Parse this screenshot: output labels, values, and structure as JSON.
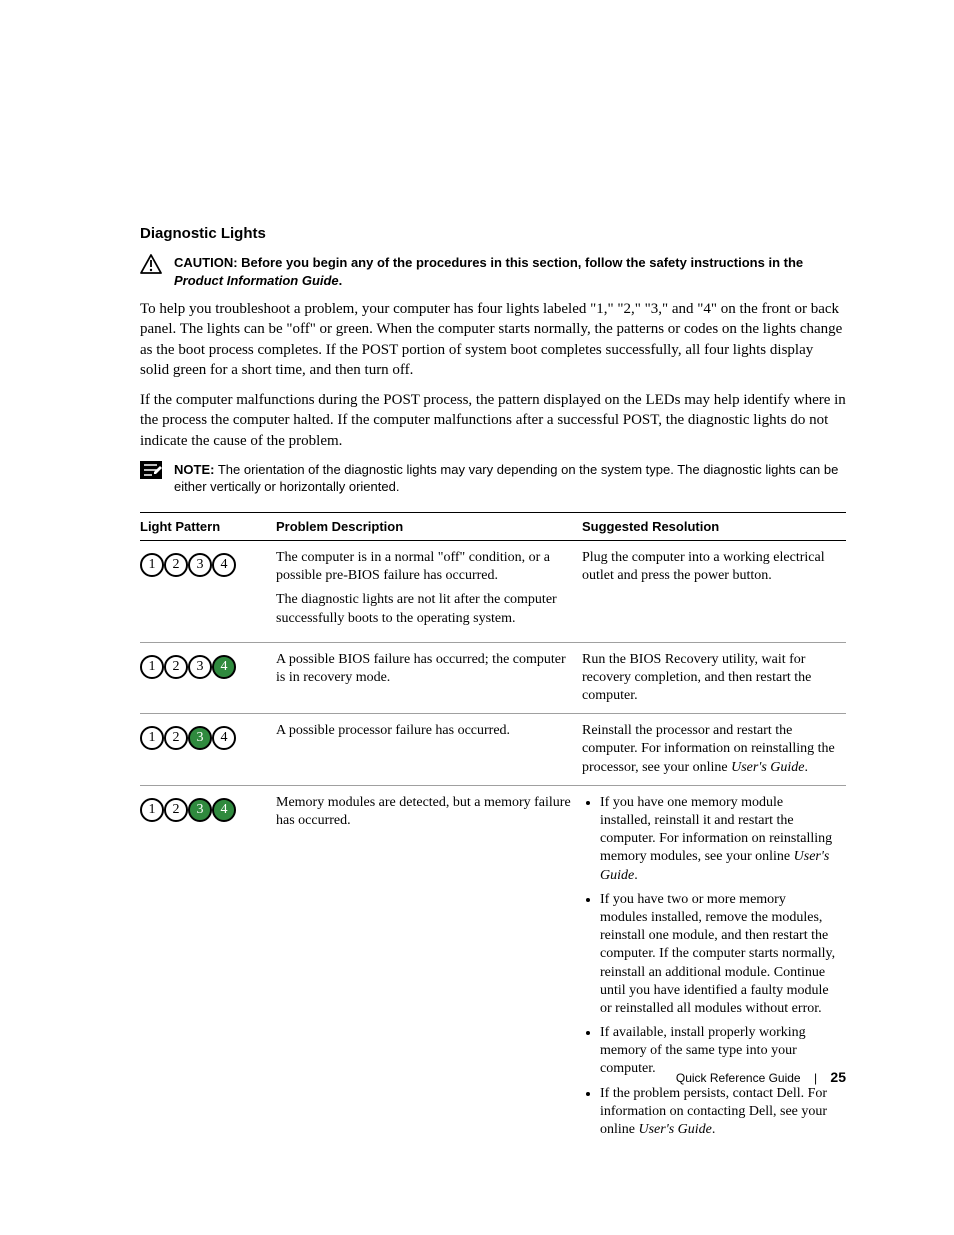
{
  "heading": "Diagnostic Lights",
  "caution": {
    "label": "CAUTION:",
    "text_before": " Before you begin any of the procedures in this section, follow the safety instructions in the ",
    "italic": "Product Information Guide",
    "text_after": ".",
    "icon_color": "#000000"
  },
  "paragraph1": "To help you troubleshoot a problem, your computer has four lights labeled \"1,\" \"2,\" \"3,\" and \"4\" on the front or back panel. The lights can be \"off\" or green. When the computer starts normally, the patterns or codes on the lights change as the boot process completes. If the POST portion of system boot completes successfully, all four lights display solid green for a short time, and then turn off.",
  "paragraph2": "If the computer malfunctions during the POST process, the pattern displayed on the LEDs may help identify where in the process the computer halted. If the computer malfunctions after a successful POST, the diagnostic lights do not indicate the cause of the problem.",
  "note": {
    "label": "NOTE:",
    "text": " The orientation of the diagnostic lights may vary depending on the system type. The diagnostic lights can be either vertically or horizontally oriented.",
    "icon_bg": "#000000",
    "icon_fg": "#ffffff"
  },
  "table": {
    "columns": [
      "Light Pattern",
      "Problem Description",
      "Suggested Resolution"
    ],
    "light_colors": {
      "off": "#ffffff",
      "green": "#2f8a3e"
    },
    "rows": [
      {
        "pattern": [
          "off",
          "off",
          "off",
          "off"
        ],
        "desc": [
          "The computer is in a normal \"off\" condition, or a possible pre-BIOS failure has occurred.",
          "The diagnostic lights are not lit after the computer successfully boots to the operating system."
        ],
        "resolution_plain": "Plug the computer into a working electrical outlet and press the power button."
      },
      {
        "pattern": [
          "off",
          "off",
          "off",
          "green"
        ],
        "desc": [
          "A possible BIOS failure has occurred; the computer is in recovery mode."
        ],
        "resolution_plain": "Run the BIOS Recovery utility, wait for recovery completion, and then restart the computer."
      },
      {
        "pattern": [
          "off",
          "off",
          "green",
          "off"
        ],
        "desc": [
          "A possible processor failure has occurred."
        ],
        "resolution_rich": {
          "before": "Reinstall the processor and restart the computer. For information on reinstalling the processor, see your online ",
          "italic": "User's Guide",
          "after": "."
        }
      },
      {
        "pattern": [
          "off",
          "off",
          "green",
          "green"
        ],
        "desc": [
          "Memory modules are detected, but a memory failure has occurred."
        ],
        "resolution_list": [
          {
            "before": "If you have one memory module installed, reinstall it and restart the computer. For information on reinstalling memory modules, see your online ",
            "italic": "User's Guide",
            "after": "."
          },
          {
            "before": "If you have two or more memory modules installed, remove the modules, reinstall one module, and then restart the computer. If the computer starts normally, reinstall an additional module. Continue until you have identified a faulty module or reinstalled all modules without error.",
            "italic": "",
            "after": ""
          },
          {
            "before": "If available, install properly working memory of the same type into your computer.",
            "italic": "",
            "after": ""
          },
          {
            "before": "If the problem persists, contact Dell. For information on contacting Dell, see your online ",
            "italic": "User's Guide",
            "after": "."
          }
        ]
      }
    ]
  },
  "footer": {
    "title": "Quick Reference Guide",
    "separator": "|",
    "page": "25"
  }
}
